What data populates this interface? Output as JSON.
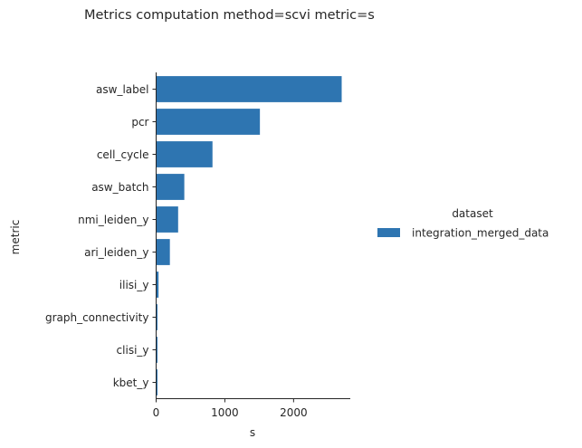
{
  "chart_data": {
    "type": "bar",
    "orientation": "horizontal",
    "title": "Metrics computation method=scvi metric=s",
    "xlabel": "s",
    "ylabel": "metric",
    "xlim": [
      0,
      2800
    ],
    "xticks": [
      0,
      1000,
      2000
    ],
    "categories": [
      "asw_label",
      "pcr",
      "cell_cycle",
      "asw_batch",
      "nmi_leiden_y",
      "ari_leiden_y",
      "ilisi_y",
      "graph_connectivity",
      "clisi_y",
      "kbet_y"
    ],
    "series": [
      {
        "name": "integration_merged_data",
        "color": "#2e75b1",
        "values": [
          2700,
          1510,
          820,
          410,
          320,
          200,
          35,
          15,
          15,
          15
        ]
      }
    ],
    "legend": {
      "title": "dataset",
      "placement": "right"
    },
    "grid": false
  }
}
